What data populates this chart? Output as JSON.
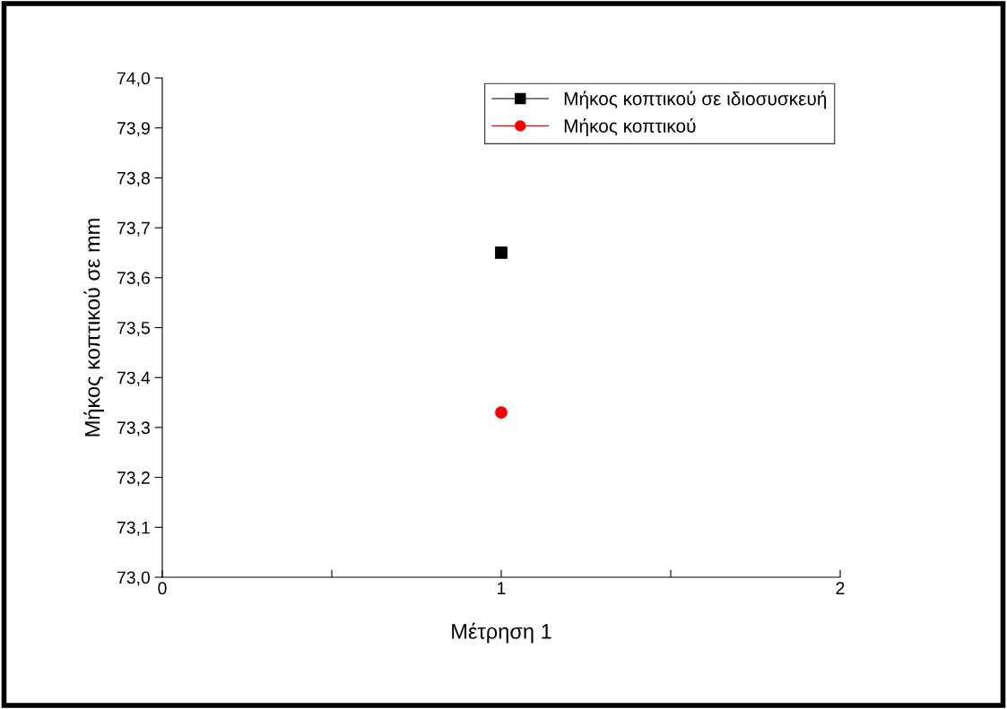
{
  "chart_data": {
    "type": "scatter",
    "xlabel": "Μέτρηση 1",
    "ylabel": "Μήκος κοπτικού σε mm",
    "x": [
      1
    ],
    "series": [
      {
        "name": "Μήκος κοπτικού σε ιδιοσυσκευή",
        "color": "#000000",
        "values": [
          73.65
        ],
        "marker": "square"
      },
      {
        "name": "Μήκος κοπτικού",
        "color": "#ff0000",
        "values": [
          73.33
        ],
        "marker": "circle"
      }
    ],
    "xlim": [
      0,
      2
    ],
    "xticks": [
      0,
      {
        "value": 0.5,
        "label": null
      },
      1,
      {
        "value": 1.5,
        "label": null
      },
      2
    ],
    "ylim": [
      73.0,
      74.0
    ],
    "yticks": [
      {
        "value": 73.0,
        "label": "73,0"
      },
      {
        "value": 73.1,
        "label": "73,1"
      },
      {
        "value": 73.2,
        "label": "73,2"
      },
      {
        "value": 73.3,
        "label": "73,3"
      },
      {
        "value": 73.4,
        "label": "73,4"
      },
      {
        "value": 73.5,
        "label": "73,5"
      },
      {
        "value": 73.6,
        "label": "73,6"
      },
      {
        "value": 73.7,
        "label": "73,7"
      },
      {
        "value": 73.8,
        "label": "73,8"
      },
      {
        "value": 73.9,
        "label": "73,9"
      },
      {
        "value": 74.0,
        "label": "74,0"
      }
    ],
    "legend": "top right",
    "grid": false
  }
}
